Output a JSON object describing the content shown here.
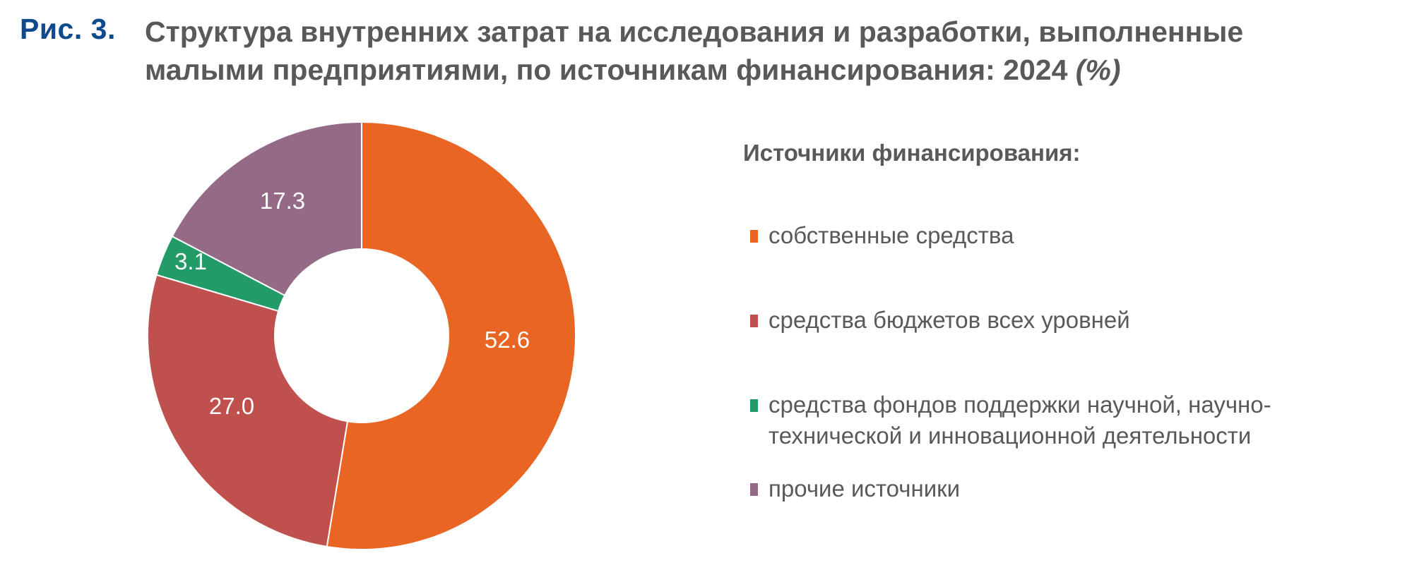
{
  "figure": {
    "number": "Рис. 3.",
    "title_line1": "Структура внутренних затрат на исследования и разработки, выполненные",
    "title_line2": "малыми предприятиями, по источникам финансирования: 2024",
    "unit": "(%)"
  },
  "legend": {
    "title": "Источники финансирования:",
    "items": [
      {
        "label": "собственные средства",
        "color": "#e96524"
      },
      {
        "label": "средства бюджетов всех уровней",
        "color": "#c0504d"
      },
      {
        "label_line1": "средства фондов поддержки научной, научно-",
        "label_line2": "технической и инновационной деятельности",
        "color": "#229b68"
      },
      {
        "label": "прочие источники",
        "color": "#946a87"
      }
    ]
  },
  "chart_data": {
    "type": "pie",
    "variant": "donut",
    "title": "Структура внутренних затрат на исследования и разработки, выполненные малыми предприятиями, по источникам финансирования: 2024 (%)",
    "legend_title": "Источники финансирования:",
    "legend_position": "right",
    "categories": [
      "собственные средства",
      "средства бюджетов всех уровней",
      "средства фондов поддержки научной, научно-технической и инновационной деятельности",
      "прочие источники"
    ],
    "values": [
      52.6,
      27.0,
      3.1,
      17.3
    ],
    "labels": [
      "52.6",
      "27.0",
      "3.1",
      "17.3"
    ],
    "colors": [
      "#e96524",
      "#c0504d",
      "#229b68",
      "#946a87"
    ],
    "start_angle": "12 o'clock, clockwise",
    "unit": "%"
  }
}
